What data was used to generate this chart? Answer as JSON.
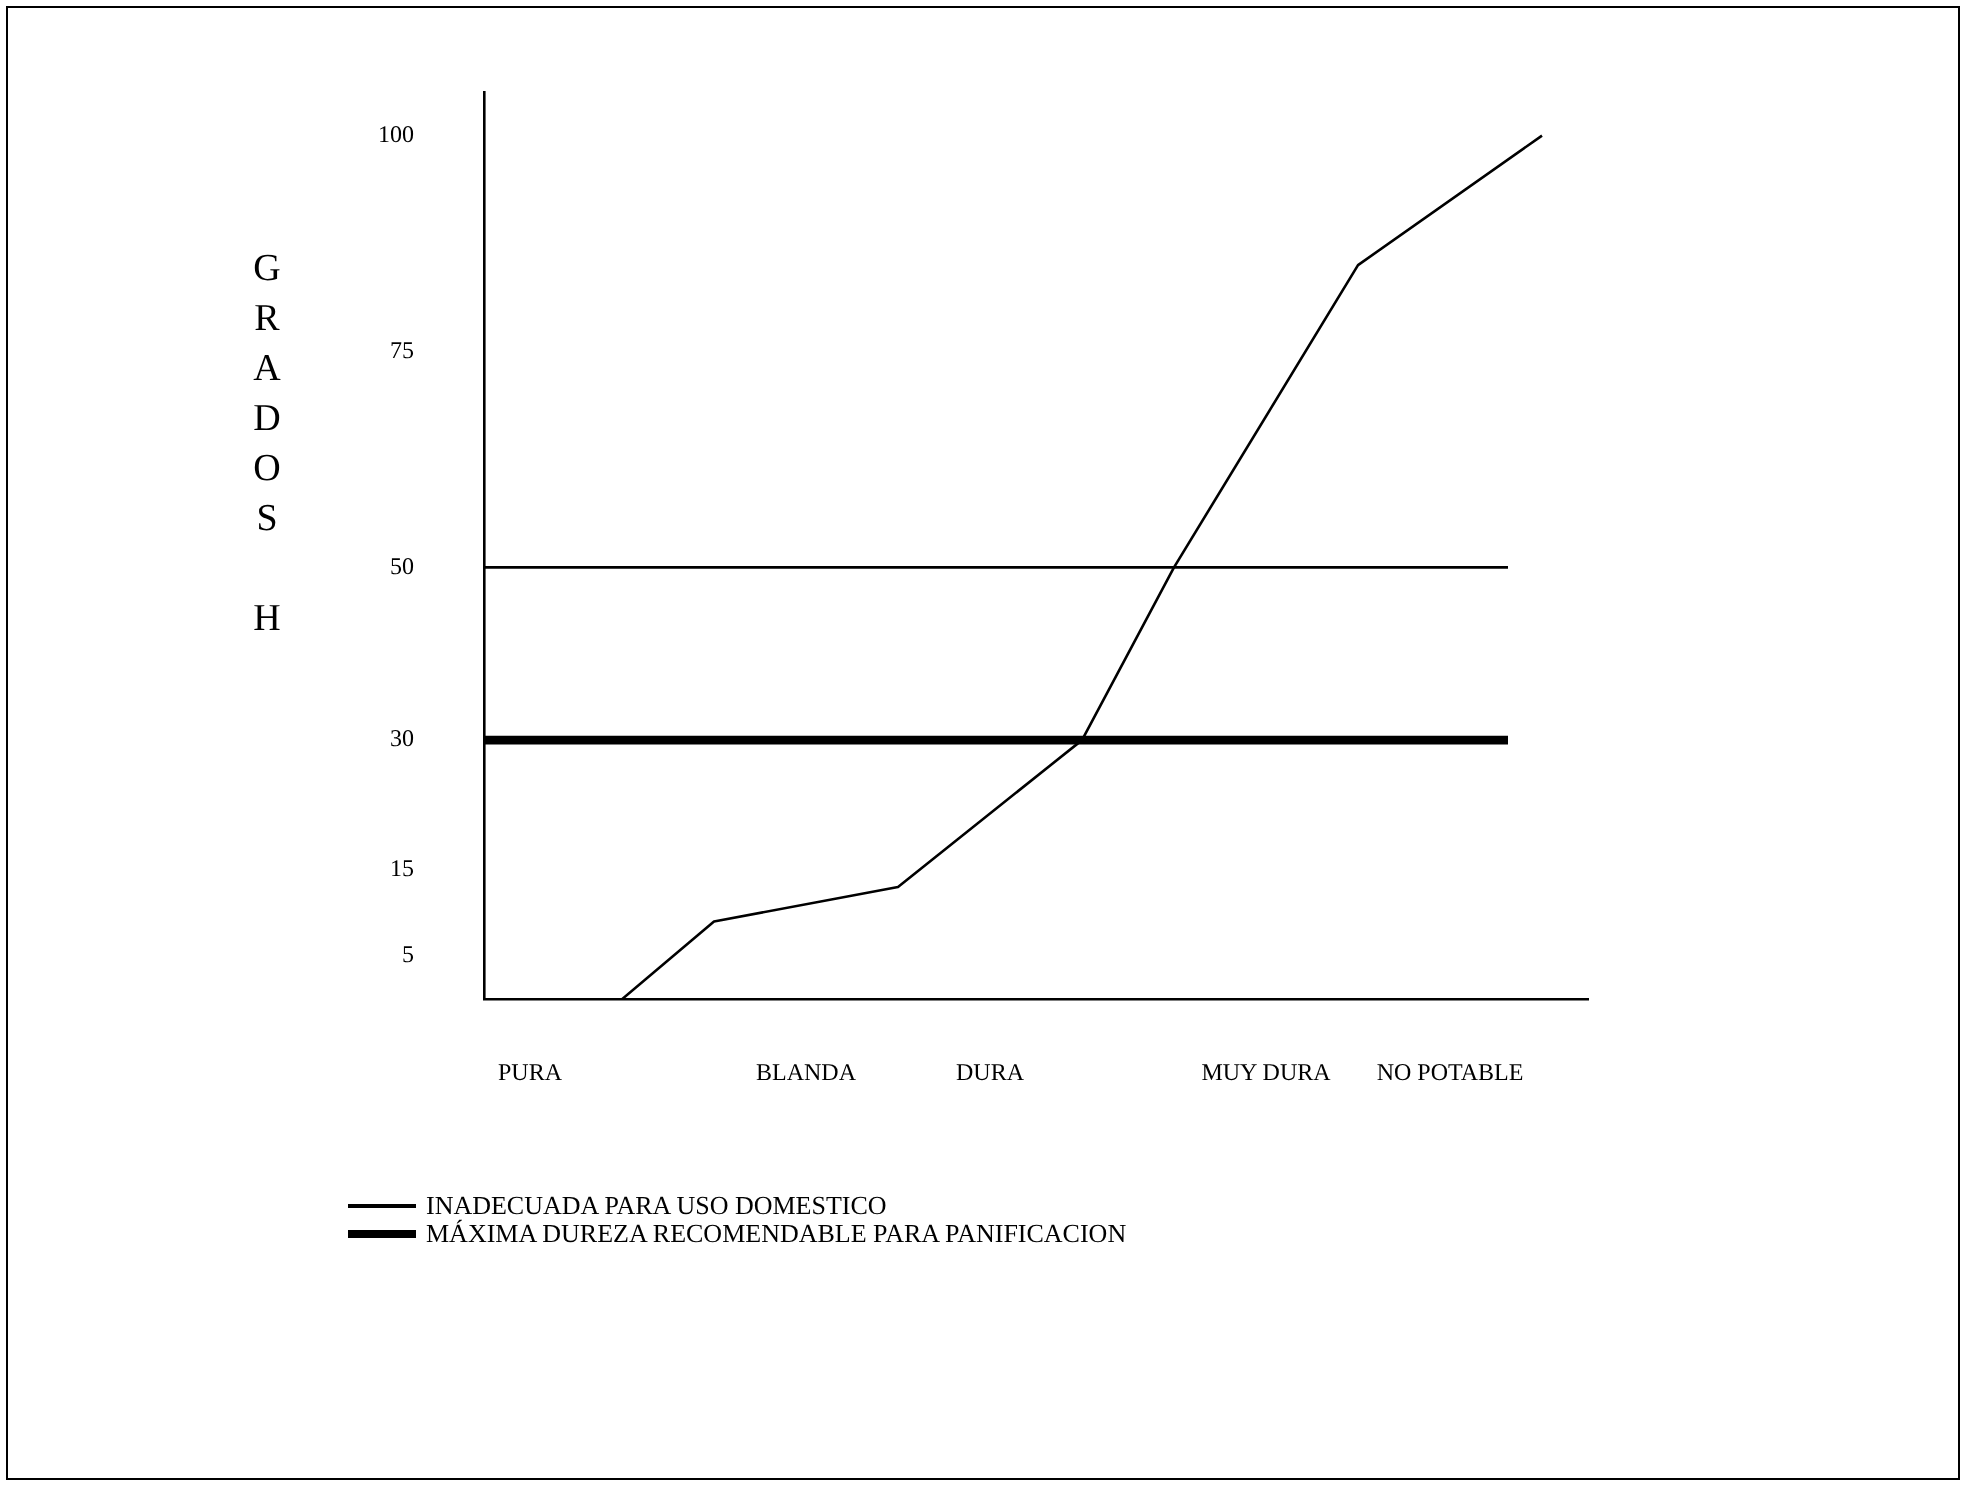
{
  "chart_data": {
    "type": "line",
    "ylabel": "GRADOS H",
    "categories": [
      "PURA",
      null,
      null,
      "BLANDA",
      null,
      "DURA",
      null,
      null,
      "MUY DURA",
      null,
      "NO POTABLE",
      null
    ],
    "series": [
      {
        "color": "#000000",
        "values": [
          null,
          0,
          9,
          null,
          13,
          null,
          30,
          50,
          null,
          85,
          null,
          100
        ]
      }
    ],
    "ylim": [
      0,
      105
    ],
    "yticks": [
      5,
      15,
      30,
      50,
      75,
      100
    ],
    "ref_lines": [
      {
        "axis": "y",
        "value": 50,
        "label": "INADECUADA PARA USO DOMESTICO",
        "color": "#000000"
      },
      {
        "axis": "y",
        "value": 30,
        "label": "MÁXIMA DUREZA RECOMENDABLE PARA PANIFICACION",
        "color": "#000000"
      }
    ],
    "grid": false,
    "legend": "bottom",
    "marker": "none",
    "line_style": "solid"
  }
}
